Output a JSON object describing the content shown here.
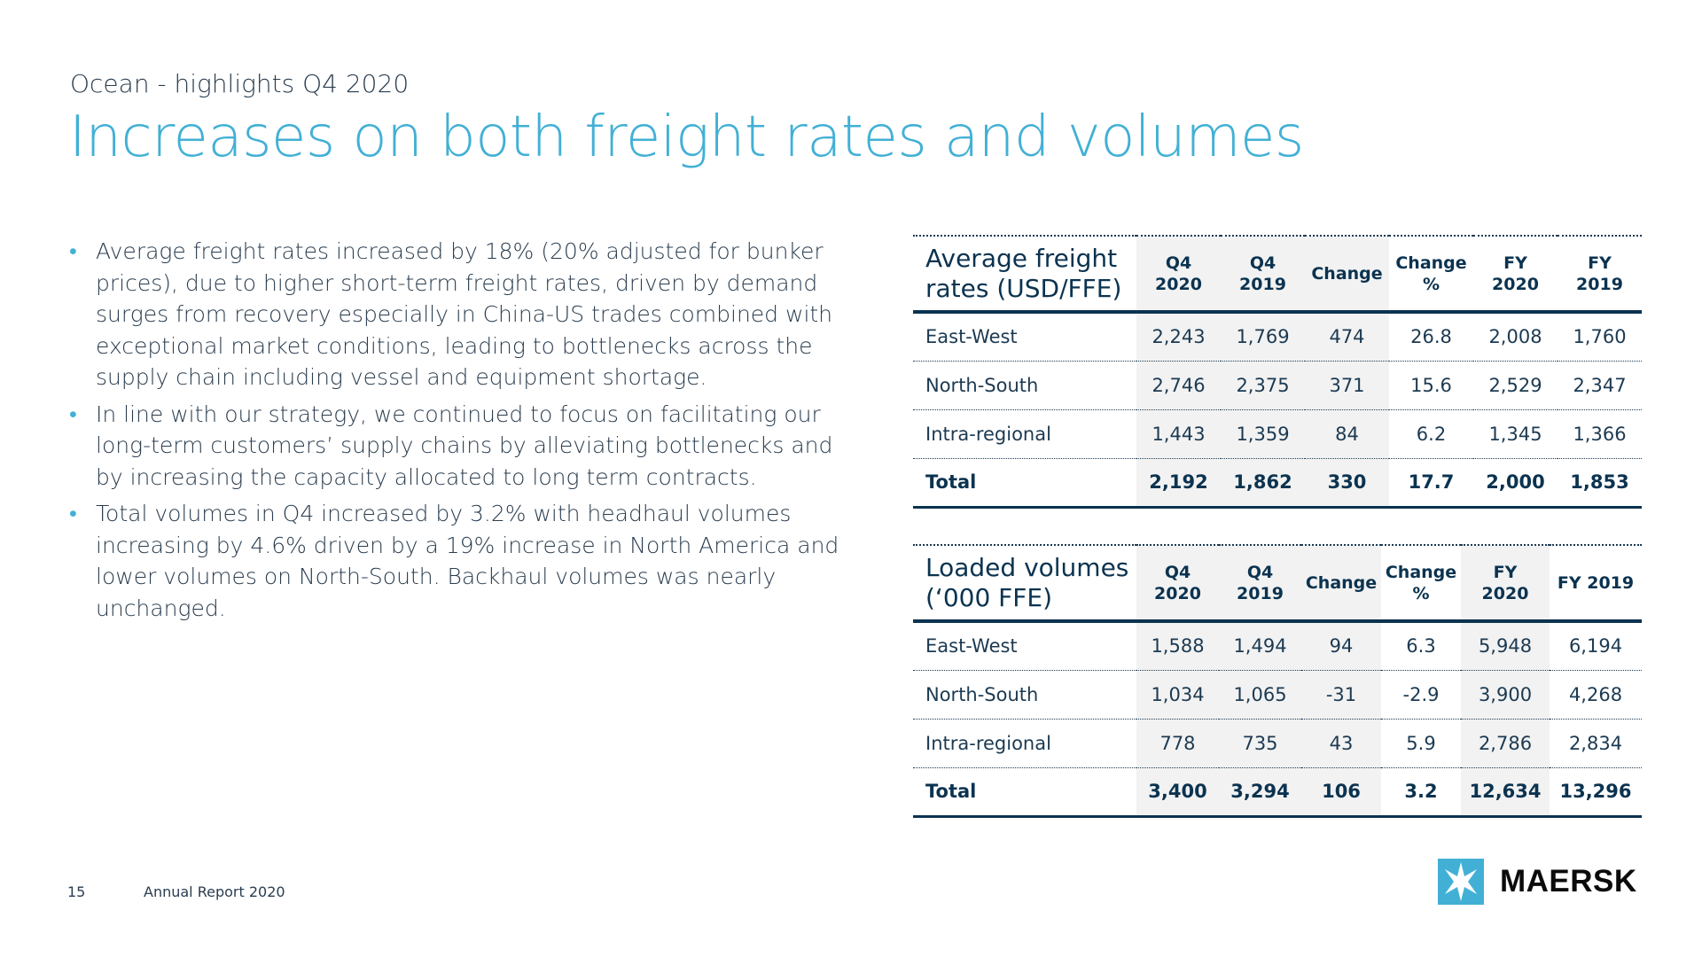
{
  "header": {
    "subtitle": "Ocean - highlights Q4 2020",
    "title": "Increases on both freight rates and volumes"
  },
  "bullets": [
    "Average freight rates increased by 18% (20% adjusted for bunker prices), due to higher short-term freight rates, driven by demand surges from recovery especially in China-US trades combined with exceptional market conditions, leading to bottlenecks across the supply chain including vessel and equipment shortage.",
    "In line with our strategy, we continued to focus on facilitating our long-term customers’ supply chains by alleviating bottlenecks and by increasing the capacity allocated to long term contracts.",
    "Total volumes in Q4 increased by 3.2% with headhaul volumes increasing by 4.6% driven by a 19% increase in North America and lower volumes on North-South. Backhaul volumes was nearly unchanged."
  ],
  "freight_table": {
    "title_line1": "Average freight",
    "title_line2": "rates (USD/FFE)",
    "columns": [
      [
        "Q4",
        "2020"
      ],
      [
        "Q4",
        "2019"
      ],
      [
        "Change",
        ""
      ],
      [
        "Change",
        "%"
      ],
      [
        "FY",
        "2020"
      ],
      [
        "FY",
        "2019"
      ]
    ],
    "rows": [
      {
        "name": "East-West",
        "values": [
          "2,243",
          "1,769",
          "474",
          "26.8",
          "2,008",
          "1,760"
        ]
      },
      {
        "name": "North-South",
        "values": [
          "2,746",
          "2,375",
          "371",
          "15.6",
          "2,529",
          "2,347"
        ]
      },
      {
        "name": "Intra-regional",
        "values": [
          "1,443",
          "1,359",
          "84",
          "6.2",
          "1,345",
          "1,366"
        ]
      },
      {
        "name": "Total",
        "values": [
          "2,192",
          "1,862",
          "330",
          "17.7",
          "2,000",
          "1,853"
        ]
      }
    ]
  },
  "volume_table": {
    "title_line1": "Loaded volumes",
    "title_line2": "(‘000 FFE)",
    "columns": [
      [
        "Q4",
        "2020"
      ],
      [
        "Q4",
        "2019"
      ],
      [
        "Change",
        ""
      ],
      [
        "Change",
        "%"
      ],
      [
        "FY",
        "2020"
      ],
      [
        "FY 2019",
        ""
      ]
    ],
    "rows": [
      {
        "name": "East-West",
        "values": [
          "1,588",
          "1,494",
          "94",
          "6.3",
          "5,948",
          "6,194"
        ]
      },
      {
        "name": "North-South",
        "values": [
          "1,034",
          "1,065",
          "-31",
          "-2.9",
          "3,900",
          "4,268"
        ]
      },
      {
        "name": "Intra-regional",
        "values": [
          "778",
          "735",
          "43",
          "5.9",
          "2,786",
          "2,834"
        ]
      },
      {
        "name": "Total",
        "values": [
          "3,400",
          "3,294",
          "106",
          "3.2",
          "12,634",
          "13,296"
        ]
      }
    ]
  },
  "footer": {
    "page_number": "15",
    "report_name": "Annual Report 2020",
    "logo_text": "MAERSK",
    "logo_color": "#42b0d5"
  }
}
